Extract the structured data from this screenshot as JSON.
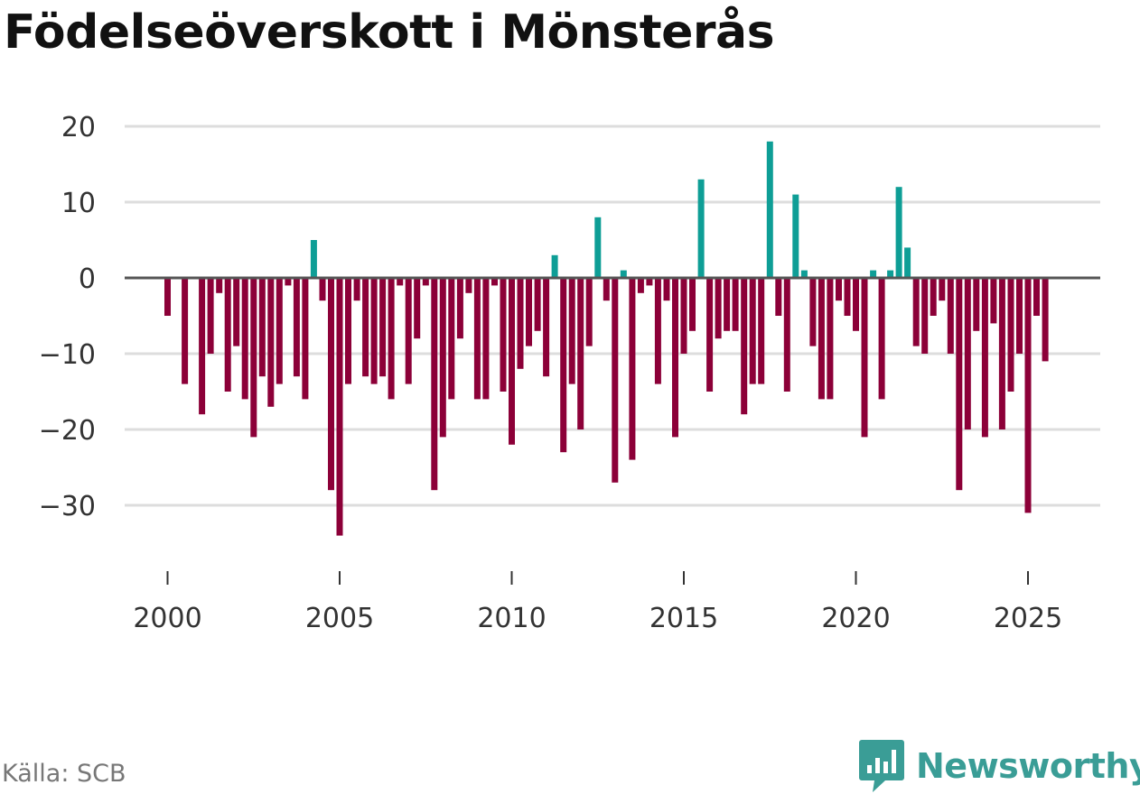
{
  "title": "Födelseöverskott i Mönsterås",
  "source": "Källa: SCB",
  "brand": {
    "name": "Newsworthy",
    "icon": "newsworthy-chart-icon"
  },
  "colors": {
    "positive": "#0e9e96",
    "negative": "#8c0038",
    "zero_line": "#555555",
    "grid": "#dddddd",
    "brand": "#3a9d96"
  },
  "chart_data": {
    "type": "bar",
    "title": "Födelseöverskott i Mönsterås",
    "xlabel": "",
    "ylabel": "",
    "frequency": "quarterly",
    "x_start": 2000.0,
    "xlim": [
      1999.25,
      2027.0
    ],
    "ylim": [
      -38,
      20
    ],
    "yticks": [
      20,
      10,
      0,
      -10,
      -20,
      -30
    ],
    "ytick_labels": [
      "20",
      "10",
      "0",
      "−10",
      "−20",
      "−30"
    ],
    "xticks": [
      2000,
      2005,
      2010,
      2015,
      2020,
      2025
    ],
    "xtick_labels": [
      "2000",
      "2005",
      "2010",
      "2015",
      "2020",
      "2025"
    ],
    "grid": true,
    "values": [
      -5,
      0,
      -14,
      0,
      -18,
      -10,
      -2,
      -15,
      -9,
      -16,
      -21,
      -13,
      -17,
      -14,
      -1,
      -13,
      -16,
      5,
      -3,
      -28,
      -34,
      -14,
      -3,
      -13,
      -14,
      -13,
      -16,
      -1,
      -14,
      -8,
      -1,
      -28,
      -21,
      -16,
      -8,
      -2,
      -16,
      -16,
      -1,
      -15,
      -22,
      -12,
      -9,
      -7,
      -13,
      3,
      -23,
      -14,
      -20,
      -9,
      8,
      -3,
      -27,
      1,
      -24,
      -2,
      -1,
      -14,
      -3,
      -21,
      -10,
      -7,
      13,
      -15,
      -8,
      -7,
      -7,
      -18,
      -14,
      -14,
      18,
      -5,
      -15,
      11,
      1,
      -9,
      -16,
      -16,
      -3,
      -5,
      -7,
      -21,
      1,
      -16,
      1,
      12,
      4,
      -9,
      -10,
      -5,
      -3,
      -10,
      -28,
      -20,
      -7,
      -21,
      -6,
      -20,
      -15,
      -10,
      -31,
      -5,
      -11
    ]
  }
}
